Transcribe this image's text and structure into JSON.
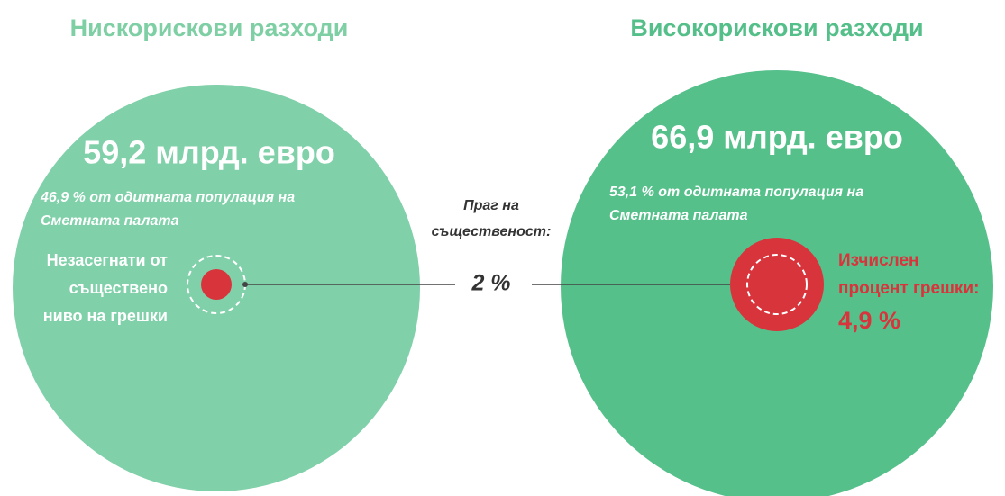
{
  "left": {
    "title": "Нискорискови разходи",
    "amount": "59,2 млрд. евро",
    "share_lines": [
      "46,9 % от одитната популация на",
      "Сметната палата"
    ],
    "label_lines": [
      "Незасегнати от",
      "съществено",
      "ниво на грешки"
    ]
  },
  "threshold": {
    "label_lines": [
      "Праг на",
      "същественост:"
    ],
    "value": "2 %"
  },
  "right": {
    "title": "Високорискови разходи",
    "amount": "66,9 млрд. евро",
    "share_lines": [
      "53,1 % от одитната популация на",
      "Сметната палата"
    ],
    "error_label_lines": [
      "Изчислен",
      "процент грешки:"
    ],
    "error_value": "4,9 %"
  }
}
